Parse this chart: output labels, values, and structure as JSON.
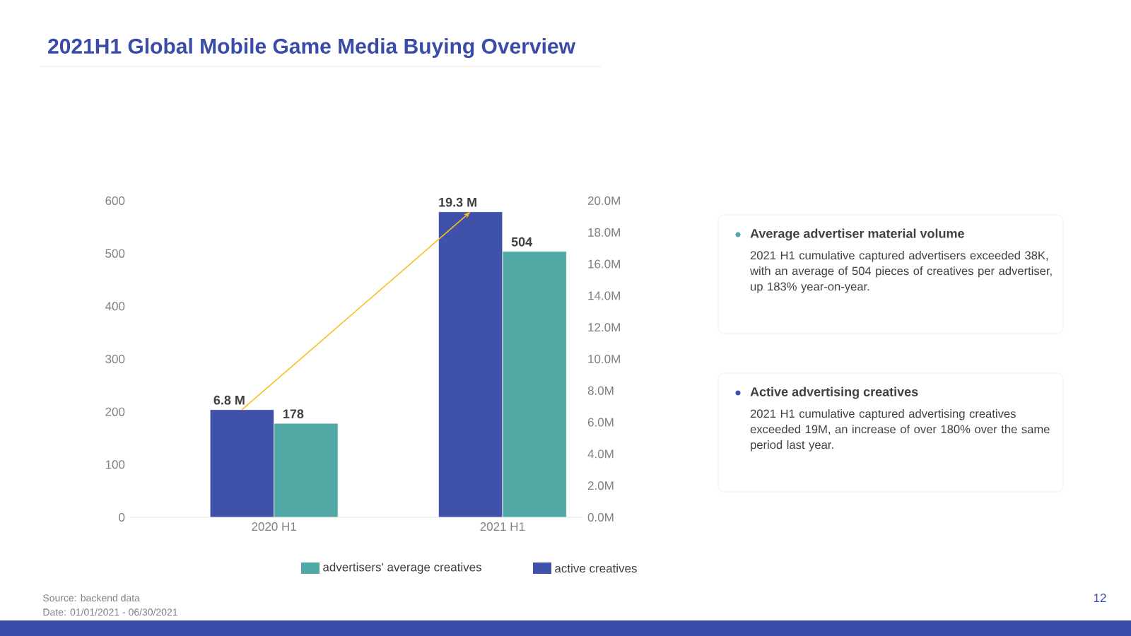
{
  "chart_data": {
    "type": "bar",
    "title": "2021H1 Global Mobile Game Media Buying Overview",
    "categories": [
      "2020 H1",
      "2021 H1"
    ],
    "series": [
      {
        "name": "active creatives",
        "color": "#3f51a8",
        "axis": "y2",
        "values": [
          6.8,
          19.3
        ],
        "value_labels": [
          "6.8 M",
          "19.3 M"
        ]
      },
      {
        "name": "advertisers' average creatives",
        "color": "#52a8a4",
        "axis": "y",
        "values": [
          178,
          504
        ],
        "value_labels": [
          "178",
          "504"
        ]
      },
      {
        "type": "line",
        "color": "#f5c020",
        "axis": "y2",
        "values": [
          6.8,
          19.3
        ]
      }
    ],
    "ylim": [
      0,
      600
    ],
    "yticks": [
      0,
      100,
      200,
      300,
      400,
      500,
      600
    ],
    "y2lim": [
      0,
      20
    ],
    "y2ticks": [
      {
        "value": 0,
        "label": "0.0M"
      },
      {
        "value": 2,
        "label": "2.0M"
      },
      {
        "value": 4,
        "label": "4.0M"
      },
      {
        "value": 6,
        "label": "6.0M"
      },
      {
        "value": 8,
        "label": "8.0M"
      },
      {
        "value": 10,
        "label": "10.0M"
      },
      {
        "value": 12,
        "label": "12.0M"
      },
      {
        "value": 14,
        "label": "14.0M"
      },
      {
        "value": 16,
        "label": "16.0M"
      },
      {
        "value": 18,
        "label": "18.0M"
      },
      {
        "value": 20,
        "label": "20.0M"
      }
    ],
    "legend": "bottom",
    "annotations": [
      "Average advertiser material volume",
      "2021 H1 cumulative captured advertisers exceeded 38K, with an average of 504 pieces of creatives per advertiser, up 183% year-on-year.",
      "Active advertising creatives",
      "2021 H1 cumulative captured advertising creatives exceeded 19M, an increase of over 180% over the same period last year.",
      "Source: backend data",
      "Date: 01/01/2021 - 06/30/2021",
      "12"
    ]
  }
}
